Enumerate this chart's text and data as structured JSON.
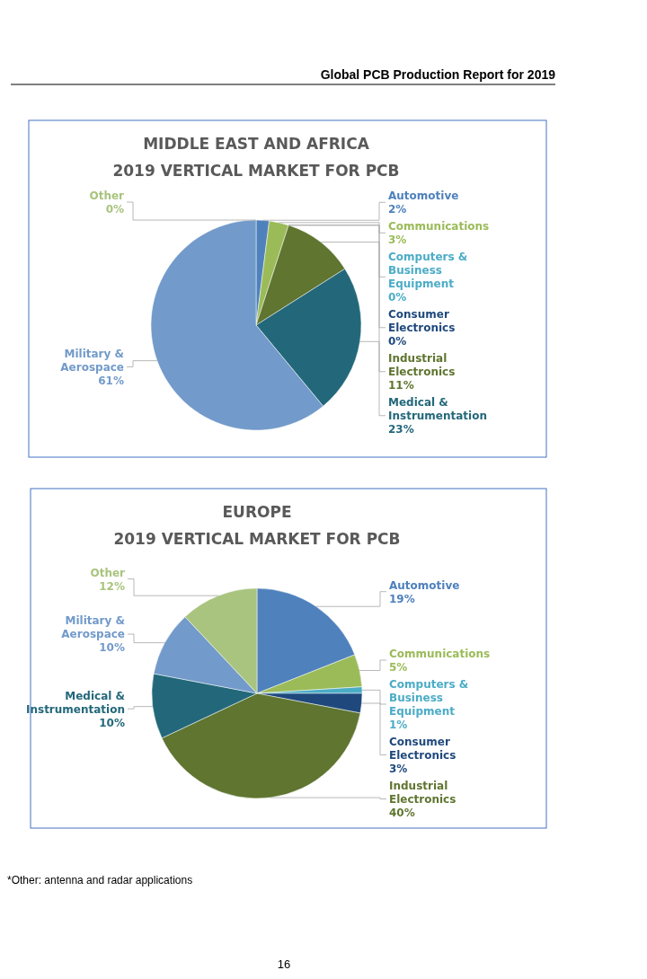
{
  "chart_data": [
    {
      "type": "pie",
      "title": "MIDDLE EAST AND AFRICA",
      "subtitle": "2019 VERTICAL MARKET FOR PCB",
      "annotations": [
        "Global PCB Production Report for 2019"
      ],
      "categories": [
        "Automotive",
        "Communications",
        "Computers & Business Equipment",
        "Consumer Electronics",
        "Industrial Electronics",
        "Medical & Instrumentation",
        "Military & Aerospace",
        "Other"
      ],
      "values": [
        2,
        3,
        0,
        0,
        11,
        23,
        61,
        0
      ],
      "value_labels": [
        "2%",
        "3%",
        "0%",
        "0%",
        "11%",
        "23%",
        "61%",
        "0%"
      ],
      "colors": [
        "#4f81bd",
        "#9bbb59",
        "#4bacc6",
        "#1f497d",
        "#5f7530",
        "#23687a",
        "#729aca",
        "#a9c47f"
      ]
    },
    {
      "type": "pie",
      "title": "EUROPE",
      "subtitle": "2019 VERTICAL MARKET FOR PCB",
      "annotations": [
        "*Other: antenna and radar applications",
        "16"
      ],
      "categories": [
        "Automotive",
        "Communications",
        "Computers & Business Equipment",
        "Consumer Electronics",
        "Industrial Electronics",
        "Medical & Instrumentation",
        "Military & Aerospace",
        "Other"
      ],
      "values": [
        19,
        5,
        1,
        3,
        40,
        10,
        10,
        12
      ],
      "value_labels": [
        "19%",
        "5%",
        "1%",
        "3%",
        "40%",
        "10%",
        "10%",
        "12%"
      ],
      "colors": [
        "#4f81bd",
        "#9bbb59",
        "#4bacc6",
        "#1f497d",
        "#5f7530",
        "#23687a",
        "#729aca",
        "#a9c47f"
      ]
    }
  ]
}
